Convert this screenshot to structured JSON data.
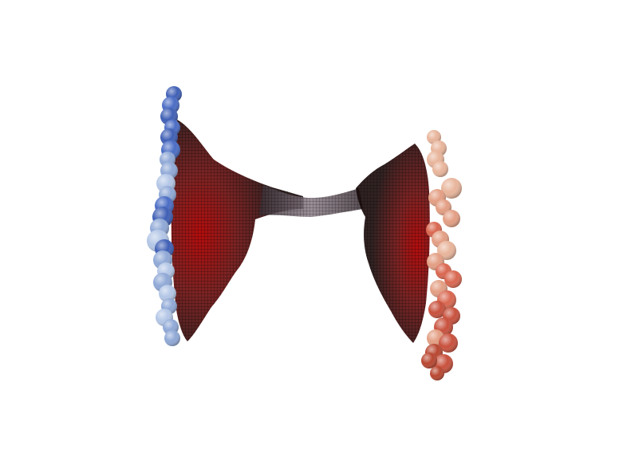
{
  "scene": {
    "background": "#ffffff",
    "objects": {
      "left_sphere_chain": {
        "colors": [
          "#3f5fb5",
          "#4a6cc4",
          "#8fa8d6",
          "#b3c6e6"
        ]
      },
      "right_sphere_chain": {
        "colors": [
          "#e8b49a",
          "#e39e83",
          "#d9664f",
          "#c8503c",
          "#b8452f"
        ]
      },
      "mesh_surface": {
        "edge_color": "#111111",
        "core_color": "#8b0d0d",
        "neck_color": "#6a5b63"
      }
    }
  }
}
